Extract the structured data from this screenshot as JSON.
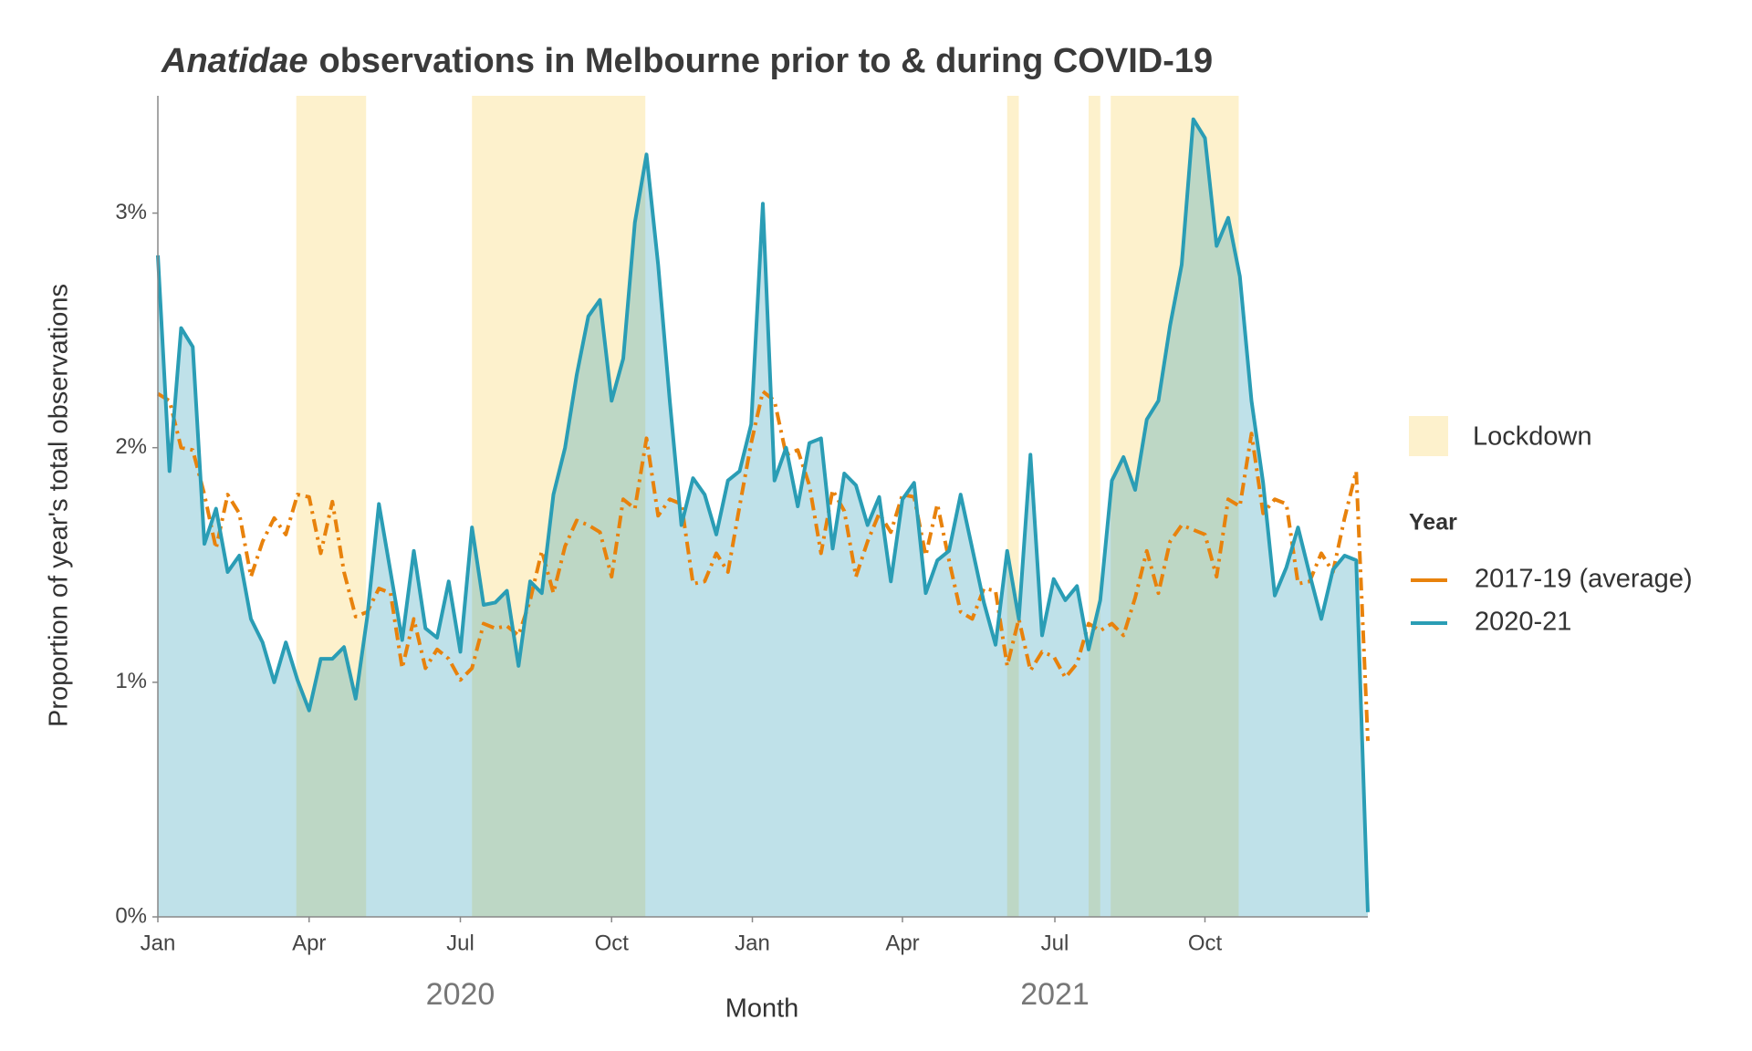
{
  "chart_data": {
    "type": "line",
    "title": [
      "Anatidae",
      "observations in Melbourne prior to & during COVID-19"
    ],
    "x_label": "Month",
    "y_label": "Proportion of year's total observations",
    "x_group_labels": [
      "2020",
      "2021"
    ],
    "xlim": [
      0,
      104
    ],
    "xticks": [
      {
        "value": 0,
        "label": "Jan"
      },
      {
        "value": 13,
        "label": "Apr"
      },
      {
        "value": 26,
        "label": "Jul"
      },
      {
        "value": 39,
        "label": "Oct"
      },
      {
        "value": 51.1,
        "label": "Jan"
      },
      {
        "value": 64,
        "label": "Apr"
      },
      {
        "value": 77.1,
        "label": "Jul"
      },
      {
        "value": 90,
        "label": "Oct"
      }
    ],
    "ylim": [
      0,
      3.5
    ],
    "yticks": [
      {
        "value": 0,
        "label": "0%"
      },
      {
        "value": 1,
        "label": "1%"
      },
      {
        "value": 2,
        "label": "2%"
      },
      {
        "value": 3,
        "label": "3%"
      }
    ],
    "grid": false,
    "legend_title": "Year",
    "shaded_regions": {
      "name": "Lockdown",
      "color": "#fdf1cc",
      "spans": [
        [
          11.9,
          17.9
        ],
        [
          27,
          41.9
        ],
        [
          73,
          74
        ],
        [
          80,
          81
        ],
        [
          81.9,
          92.9
        ]
      ]
    },
    "x": [
      0,
      1,
      2,
      3,
      4,
      5,
      6,
      7,
      8,
      9,
      10,
      11,
      12,
      13,
      14,
      15,
      16,
      17,
      18,
      19,
      20,
      21,
      22,
      23,
      24,
      25,
      26,
      27,
      28,
      29,
      30,
      31,
      32,
      33,
      34,
      35,
      36,
      37,
      38,
      39,
      40,
      41,
      42,
      43,
      44,
      45,
      46,
      47,
      48,
      49,
      50,
      51,
      52,
      53,
      54,
      55,
      56,
      57,
      58,
      59,
      60,
      61,
      62,
      63,
      64,
      65,
      66,
      67,
      68,
      69,
      70,
      71,
      72,
      73,
      74,
      75,
      76,
      77,
      78,
      79,
      80,
      81,
      82,
      83,
      84,
      85,
      86,
      87,
      88,
      89,
      90,
      91,
      92,
      93,
      94,
      95,
      96,
      97,
      98,
      99,
      100,
      101,
      102,
      103,
      104
    ],
    "series": [
      {
        "name": "2017-19 (average)",
        "color": "#e8820c",
        "dash": "dashdot",
        "fill": false,
        "values": [
          2.23,
          2.2,
          2.0,
          1.99,
          1.8,
          1.57,
          1.8,
          1.72,
          1.45,
          1.6,
          1.7,
          1.63,
          1.8,
          1.79,
          1.55,
          1.77,
          1.47,
          1.28,
          1.3,
          1.4,
          1.38,
          1.06,
          1.27,
          1.06,
          1.14,
          1.1,
          1.01,
          1.06,
          1.25,
          1.23,
          1.24,
          1.2,
          1.35,
          1.56,
          1.38,
          1.58,
          1.69,
          1.67,
          1.64,
          1.45,
          1.78,
          1.74,
          2.04,
          1.71,
          1.78,
          1.76,
          1.42,
          1.43,
          1.55,
          1.47,
          1.75,
          2.02,
          2.24,
          2.2,
          1.97,
          1.99,
          1.84,
          1.55,
          1.82,
          1.73,
          1.45,
          1.6,
          1.72,
          1.64,
          1.8,
          1.79,
          1.54,
          1.76,
          1.52,
          1.3,
          1.27,
          1.4,
          1.39,
          1.07,
          1.27,
          1.05,
          1.13,
          1.11,
          1.02,
          1.08,
          1.25,
          1.22,
          1.25,
          1.2,
          1.36,
          1.56,
          1.38,
          1.6,
          1.67,
          1.65,
          1.63,
          1.45,
          1.78,
          1.75,
          2.06,
          1.72,
          1.78,
          1.76,
          1.42,
          1.43,
          1.55,
          1.47,
          1.7,
          1.9,
          0.75
        ]
      },
      {
        "name": "2020-21",
        "color": "#2a9db5",
        "dash": "solid",
        "fill": true,
        "values": [
          2.82,
          1.9,
          2.51,
          2.43,
          1.59,
          1.74,
          1.47,
          1.54,
          1.27,
          1.17,
          1.0,
          1.17,
          1.01,
          0.88,
          1.1,
          1.1,
          1.15,
          0.93,
          1.28,
          1.76,
          1.47,
          1.18,
          1.56,
          1.23,
          1.19,
          1.43,
          1.13,
          1.66,
          1.33,
          1.34,
          1.39,
          1.07,
          1.43,
          1.38,
          1.8,
          2.0,
          2.31,
          2.56,
          2.63,
          2.2,
          2.38,
          2.96,
          3.25,
          2.78,
          2.2,
          1.67,
          1.87,
          1.8,
          1.63,
          1.86,
          1.9,
          2.1,
          3.04,
          1.86,
          2.0,
          1.75,
          2.02,
          2.04,
          1.57,
          1.89,
          1.84,
          1.67,
          1.79,
          1.43,
          1.78,
          1.85,
          1.38,
          1.52,
          1.56,
          1.8,
          1.57,
          1.34,
          1.16,
          1.56,
          1.27,
          1.97,
          1.2,
          1.44,
          1.35,
          1.41,
          1.14,
          1.35,
          1.86,
          1.96,
          1.82,
          2.12,
          2.2,
          2.52,
          2.78,
          3.4,
          3.32,
          2.86,
          2.98,
          2.73,
          2.2,
          1.85,
          1.37,
          1.49,
          1.66,
          1.46,
          1.27,
          1.48,
          1.54,
          1.52,
          0.02
        ]
      }
    ]
  }
}
